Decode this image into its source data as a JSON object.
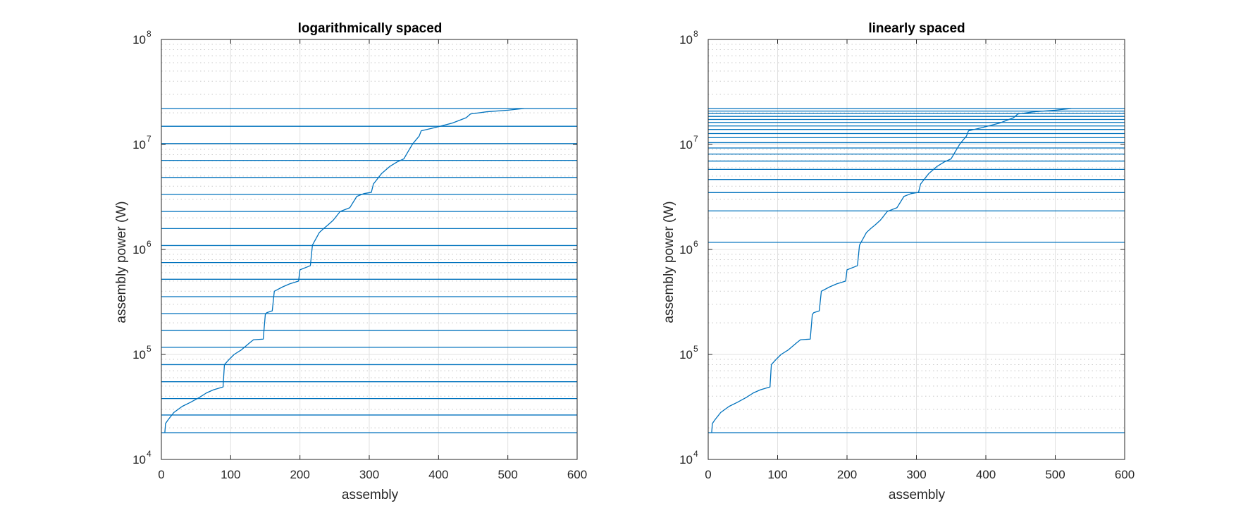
{
  "chart_data": [
    {
      "type": "line",
      "title": "logarithmically spaced",
      "xlabel": "assembly",
      "ylabel": "assembly power (W)",
      "xlim": [
        0,
        600
      ],
      "ylim": [
        10000,
        100000000
      ],
      "yscale": "log",
      "x_ticks": [
        "0",
        "100",
        "200",
        "300",
        "400",
        "500",
        "600"
      ],
      "y_ticks": [
        {
          "base": "10",
          "exp": "4"
        },
        {
          "base": "10",
          "exp": "5"
        },
        {
          "base": "10",
          "exp": "6"
        },
        {
          "base": "10",
          "exp": "7"
        },
        {
          "base": "10",
          "exp": "8"
        }
      ],
      "grid": true,
      "line_color": "#0072BD",
      "curve": {
        "x": [
          5,
          6,
          10,
          18,
          30,
          42,
          55,
          65,
          75,
          89,
          91,
          98,
          105,
          115,
          128,
          133,
          147,
          150,
          152,
          160,
          163,
          175,
          185,
          198,
          200,
          215,
          218,
          228,
          235,
          240,
          248,
          258,
          272,
          282,
          292,
          303,
          306,
          318,
          330,
          340,
          350,
          358,
          363,
          372,
          375,
          395,
          420,
          440,
          446,
          470,
          500,
          523
        ],
        "y": [
          18000,
          22000,
          24000,
          28000,
          32000,
          35000,
          39000,
          43000,
          46000,
          49000,
          80000,
          90000,
          100000,
          110000,
          130000,
          138000,
          140000,
          240000,
          250000,
          260000,
          400000,
          440000,
          470000,
          500000,
          640000,
          700000,
          1100000,
          1450000,
          1600000,
          1700000,
          1900000,
          2300000,
          2500000,
          3200000,
          3400000,
          3500000,
          4200000,
          5300000,
          6200000,
          6800000,
          7300000,
          9000000,
          10200000,
          12000000,
          13500000,
          14500000,
          16000000,
          18000000,
          19500000,
          20500000,
          21200000,
          22000000
        ]
      },
      "thresholds": [
        18000,
        26500,
        38000,
        55000,
        80000,
        117000,
        170000,
        245000,
        355000,
        520000,
        750000,
        1090000,
        1580000,
        2300000,
        3350000,
        4850000,
        7050000,
        10200000,
        14900000,
        22000000
      ]
    },
    {
      "type": "line",
      "title": "linearly spaced",
      "xlabel": "assembly",
      "ylabel": "assembly power (W)",
      "xlim": [
        0,
        600
      ],
      "ylim": [
        10000,
        100000000
      ],
      "yscale": "log",
      "x_ticks": [
        "0",
        "100",
        "200",
        "300",
        "400",
        "500",
        "600"
      ],
      "y_ticks": [
        {
          "base": "10",
          "exp": "4"
        },
        {
          "base": "10",
          "exp": "5"
        },
        {
          "base": "10",
          "exp": "6"
        },
        {
          "base": "10",
          "exp": "7"
        },
        {
          "base": "10",
          "exp": "8"
        }
      ],
      "grid": true,
      "line_color": "#0072BD",
      "curve": {
        "x": [
          5,
          6,
          10,
          18,
          30,
          42,
          55,
          65,
          75,
          89,
          91,
          98,
          105,
          115,
          128,
          133,
          147,
          150,
          152,
          160,
          163,
          175,
          185,
          198,
          200,
          215,
          218,
          228,
          235,
          240,
          248,
          258,
          272,
          282,
          292,
          303,
          306,
          318,
          330,
          340,
          350,
          358,
          363,
          372,
          375,
          395,
          420,
          440,
          446,
          470,
          500,
          523
        ],
        "y": [
          18000,
          22000,
          24000,
          28000,
          32000,
          35000,
          39000,
          43000,
          46000,
          49000,
          80000,
          90000,
          100000,
          110000,
          130000,
          138000,
          140000,
          240000,
          250000,
          260000,
          400000,
          440000,
          470000,
          500000,
          640000,
          700000,
          1100000,
          1450000,
          1600000,
          1700000,
          1900000,
          2300000,
          2500000,
          3200000,
          3400000,
          3500000,
          4200000,
          5300000,
          6200000,
          6800000,
          7300000,
          9000000,
          10200000,
          12000000,
          13500000,
          14500000,
          16000000,
          18000000,
          19500000,
          20500000,
          21200000,
          22000000
        ]
      },
      "thresholds": [
        18000,
        1170000,
        2330000,
        3480000,
        4640000,
        5790000,
        6950000,
        8100000,
        9260000,
        10400000,
        11600000,
        12700000,
        13900000,
        15000000,
        16200000,
        17300000,
        18500000,
        19700000,
        20800000,
        22000000
      ]
    }
  ]
}
